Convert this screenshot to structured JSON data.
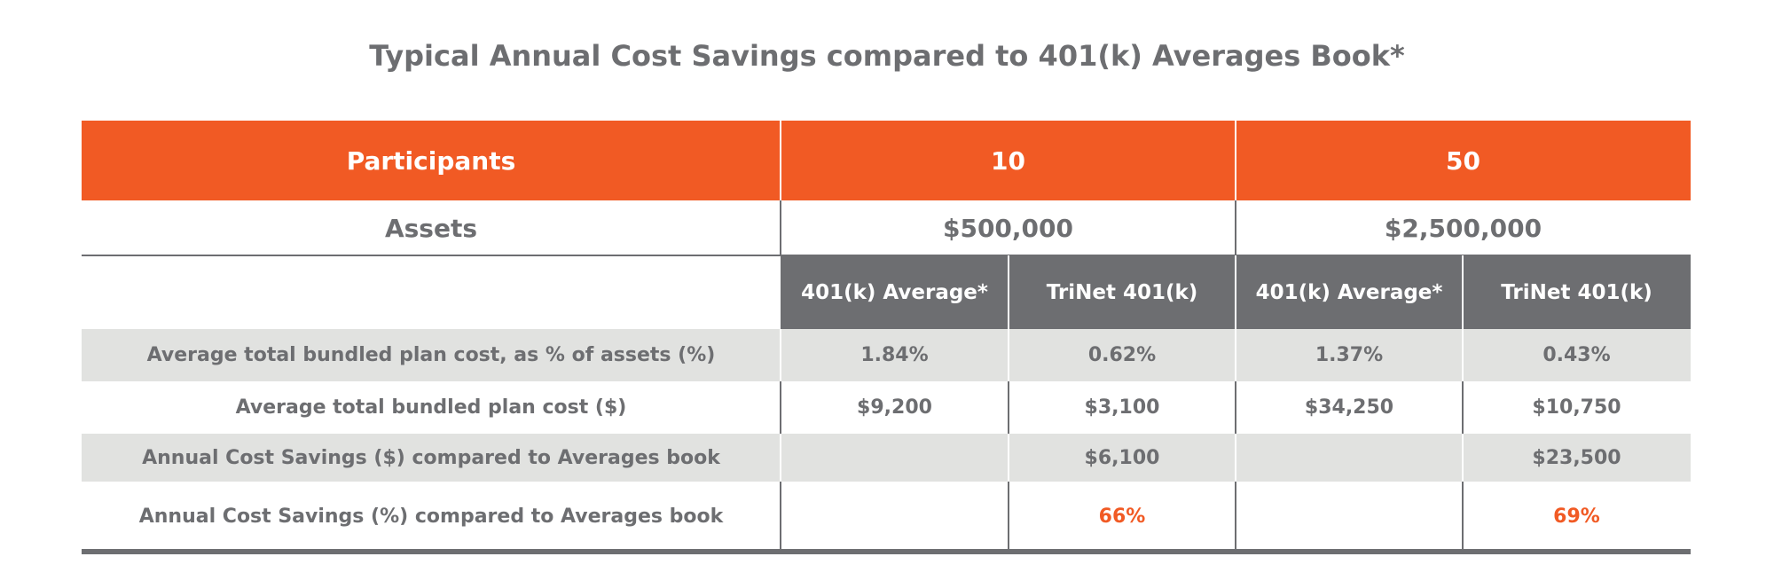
{
  "title": "Typical Annual Cost Savings compared to 401(k) Averages Book*",
  "header": [
    "Participants",
    "10",
    "50"
  ],
  "assets": [
    "Assets",
    "$500,000",
    "$2,500,000"
  ],
  "subheader": [
    "401(k) Average*",
    "TriNet 401(k)",
    "401(k) Average*",
    "TriNet 401(k)"
  ],
  "rows": [
    [
      "Average total bundled plan cost, as % of assets (%)",
      "1.84%",
      "0.62%",
      "1.37%",
      "0.43%"
    ],
    [
      "Average total bundled plan cost ($)",
      "$9,200",
      "$3,100",
      "$34,250",
      "$10,750"
    ],
    [
      "Annual Cost Savings ($) compared to Averages book",
      null,
      "$6,100",
      null,
      "$23,500"
    ],
    [
      "Annual Cost Savings (%) compared to Averages book",
      null,
      "66%",
      null,
      "69%"
    ]
  ]
}
